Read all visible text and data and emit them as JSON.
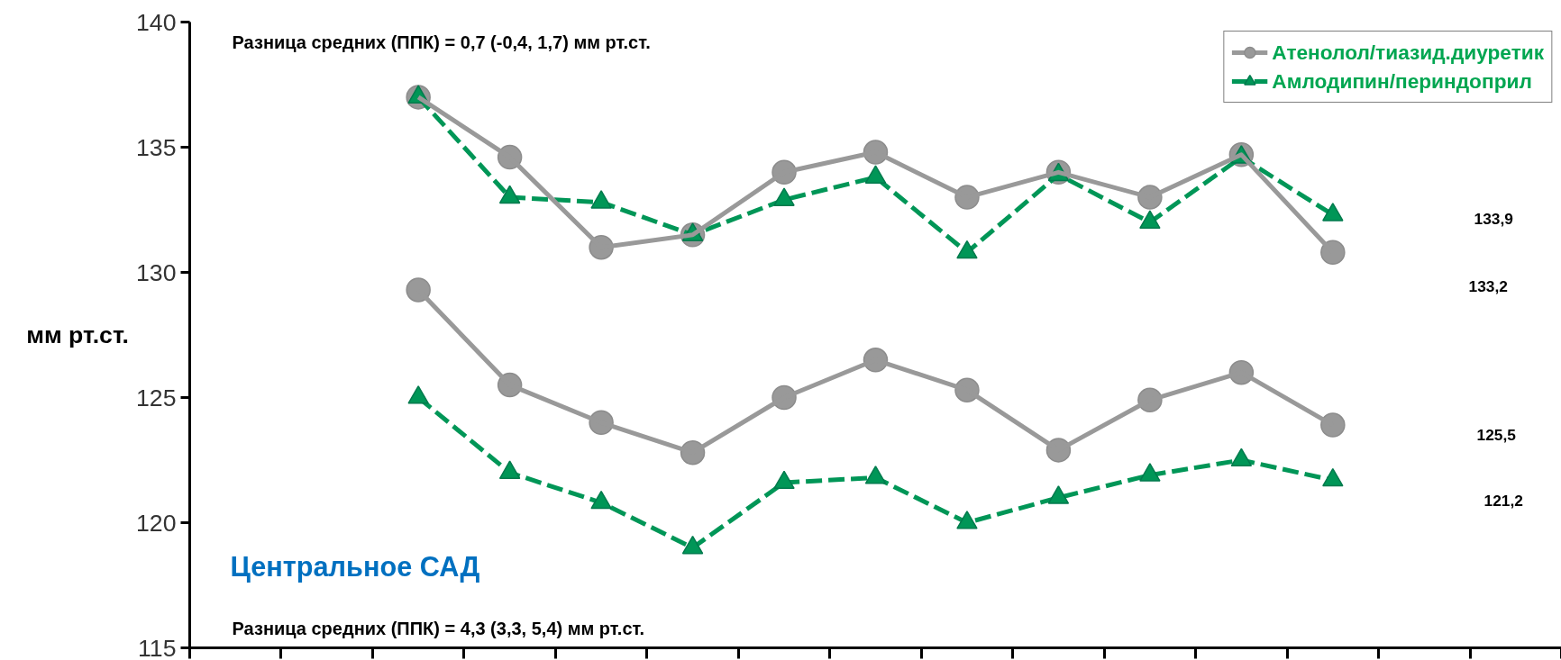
{
  "chart_data": {
    "type": "line",
    "ylabel": "мм рт.ст.",
    "categories": [
      null,
      null,
      null,
      null,
      null,
      null,
      null,
      null,
      null,
      null,
      null,
      null,
      null,
      null,
      null
    ],
    "ylim": [
      115,
      140
    ],
    "yticks": [
      115,
      120,
      125,
      130,
      135,
      140
    ],
    "tick_labels": "y",
    "grid": false,
    "legend": "top right",
    "series": [
      {
        "name": "Атенолол/тиазид.диуретик",
        "color": "#999999",
        "marker": "circle",
        "line_style": "solid",
        "values": [
          null,
          null,
          137.0,
          134.6,
          131.0,
          131.5,
          134.0,
          134.8,
          133.0,
          134.0,
          133.0,
          134.7,
          130.8,
          null,
          null
        ]
      },
      {
        "name": "Амлодипин/периндоприл",
        "color": "#009657",
        "marker": "triangle",
        "line_style": "dashed",
        "values": [
          null,
          null,
          137.0,
          133.0,
          132.8,
          131.5,
          132.9,
          133.8,
          130.8,
          133.9,
          132.0,
          134.6,
          132.3,
          null,
          null
        ]
      },
      {
        "color": "#999999",
        "marker": "circle",
        "line_style": "solid",
        "values": [
          null,
          null,
          129.3,
          125.5,
          124.0,
          122.8,
          125.0,
          126.5,
          125.3,
          122.9,
          124.9,
          126.0,
          123.9,
          null,
          null
        ]
      },
      {
        "color": "#009657",
        "marker": "triangle",
        "line_style": "dashed",
        "values": [
          null,
          null,
          125.0,
          122.0,
          120.8,
          119.0,
          121.6,
          121.8,
          120.0,
          121.0,
          121.9,
          122.5,
          121.7,
          null,
          null
        ]
      }
    ],
    "annotations": [
      "Разница средних (ППК) = 0,7 (-0,4, 1,7) мм рт.ст.",
      "Центральное САД",
      "Разница средних (ППК) = 4,3 (3,3, 5,4) мм рт.ст.",
      "133,9",
      "133,2",
      "125,5",
      "121,2"
    ]
  }
}
